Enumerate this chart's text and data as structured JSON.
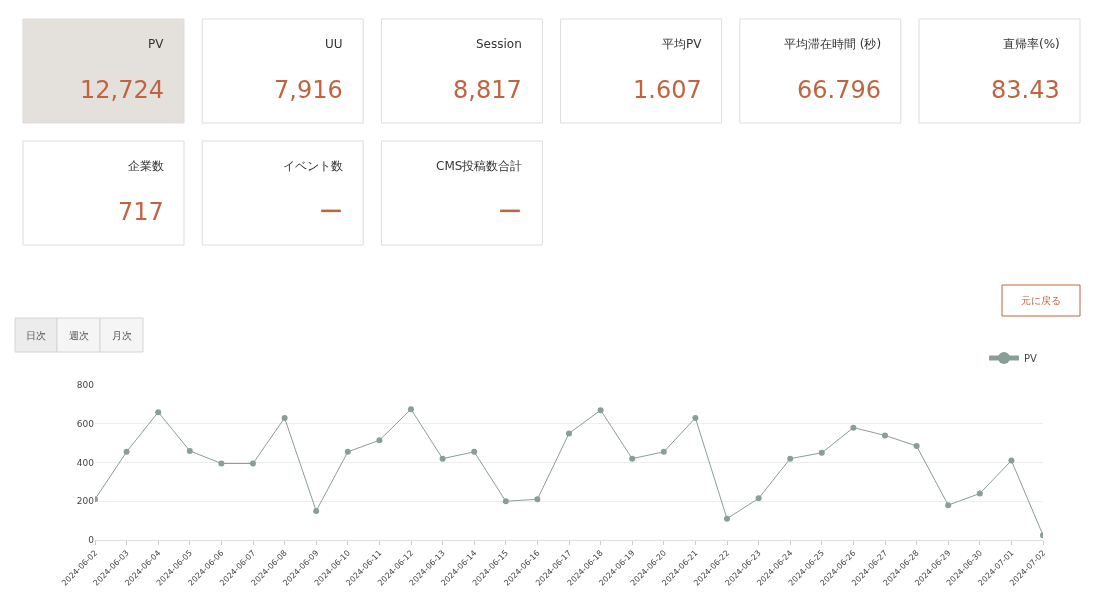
{
  "chart_data": [
    {
      "type": "other",
      "categories": [
        "PV",
        "UU",
        "Session",
        "平均PV",
        "平均滞在時間 (秒)",
        "直帰率(%)",
        "企業数",
        "イベント数",
        "CMS投稿数合計"
      ],
      "value_labels": [
        "12,724",
        "7,916",
        "8,817",
        "1.607",
        "66.796",
        "83.43",
        "717",
        "ー",
        "ー"
      ],
      "colors": [
        "#e4e0db",
        "#ffffff",
        "#ffffff",
        "#ffffff",
        "#ffffff",
        "#ffffff",
        "#ffffff",
        "#ffffff",
        "#ffffff"
      ]
    },
    {
      "type": "line",
      "categories": [
        "2024-06-02",
        "2024-06-03",
        "2024-06-04",
        "2024-06-05",
        "2024-06-06",
        "2024-06-07",
        "2024-06-08",
        "2024-06-09",
        "2024-06-10",
        "2024-06-11",
        "2024-06-12",
        "2024-06-13",
        "2024-06-14",
        "2024-06-15",
        "2024-06-16",
        "2024-06-17",
        "2024-06-18",
        "2024-06-19",
        "2024-06-20",
        "2024-06-21",
        "2024-06-22",
        "2024-06-23",
        "2024-06-24",
        "2024-06-25",
        "2024-06-26",
        "2024-06-27",
        "2024-06-28",
        "2024-06-29",
        "2024-06-30",
        "2024-07-01",
        "2024-07-02"
      ],
      "series": [
        {
          "name": "PV",
          "color": "#8a9e96",
          "values": [
            210,
            455,
            660,
            460,
            395,
            395,
            630,
            150,
            455,
            515,
            675,
            420,
            455,
            200,
            210,
            550,
            670,
            420,
            455,
            630,
            110,
            215,
            420,
            450,
            580,
            540,
            485,
            180,
            240,
            410,
            25
          ]
        }
      ],
      "ylim": [
        0,
        800
      ],
      "yticks": [
        0,
        200,
        400,
        600,
        800
      ],
      "grid": "y",
      "legend": "top right",
      "marker": "circle",
      "line_style": "solid",
      "annotations": [
        "元に戻る",
        "日次",
        "週次",
        "月次"
      ]
    }
  ]
}
